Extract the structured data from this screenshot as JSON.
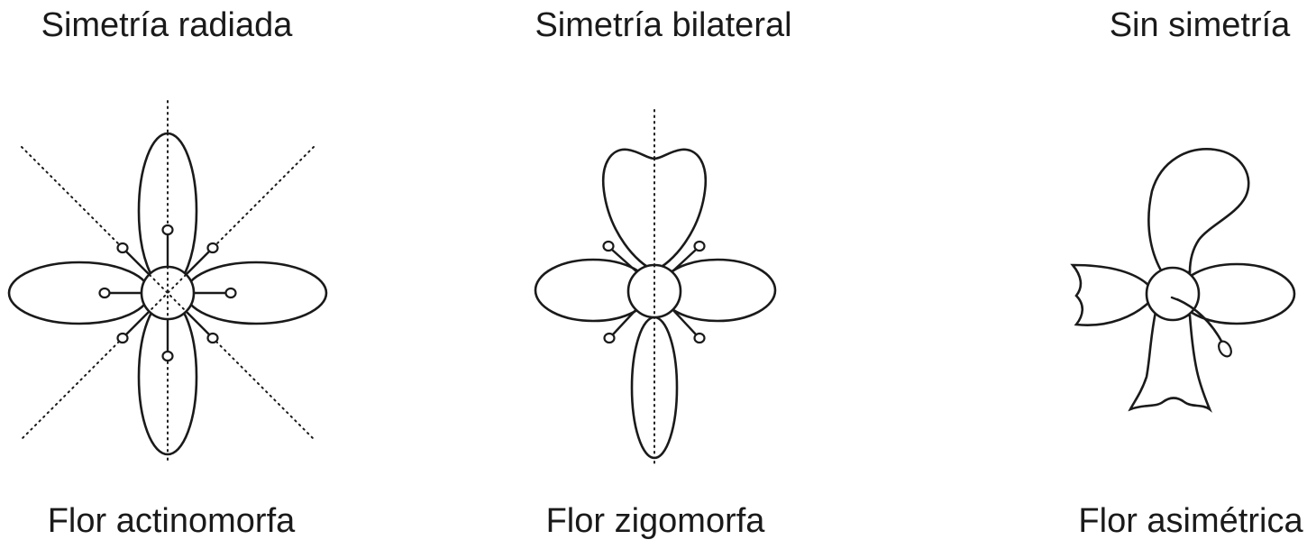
{
  "figure": {
    "panels": [
      {
        "title": "Simetría radiada",
        "caption": "Flor actinomorfa"
      },
      {
        "title": "Simetría bilateral",
        "caption": "Flor zigomorfa"
      },
      {
        "title": "Sin simetría",
        "caption": "Flor asimétrica"
      }
    ]
  }
}
